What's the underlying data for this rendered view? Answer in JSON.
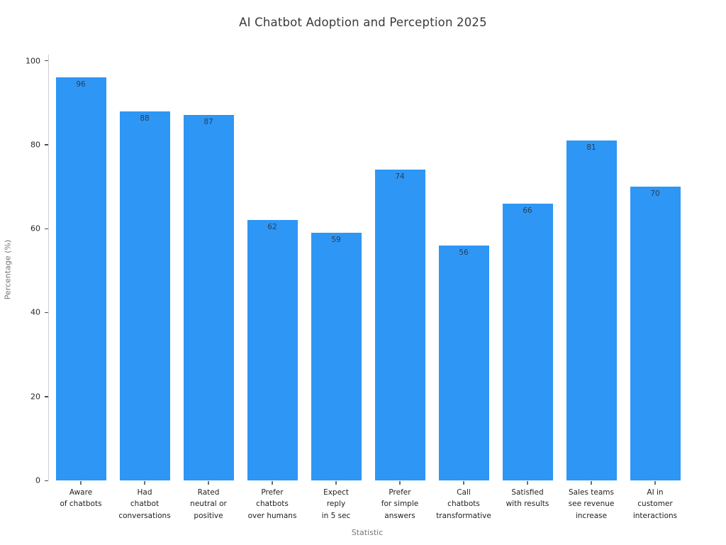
{
  "chart_data": {
    "type": "bar",
    "title": "AI Chatbot Adoption and Perception 2025",
    "xlabel": "Statistic",
    "ylabel": "Percentage (%)",
    "ylim": [
      0,
      100
    ],
    "yticks": [
      0,
      20,
      40,
      60,
      80,
      100
    ],
    "grid": false,
    "legend": null,
    "background_color": "#ffffff",
    "bar_color": "#2E96F5",
    "value_label_color": "#2d3e50",
    "categories": [
      "Aware\nof chatbots",
      "Had\nchatbot\nconversations",
      "Rated\nneutral or\npositive",
      "Prefer\nchatbots\nover humans",
      "Expect\nreply\nin 5 sec",
      "Prefer\nfor simple\nanswers",
      "Call\nchatbots\ntransformative",
      "Satisfied\nwith results",
      "Sales teams\nsee revenue\nincrease",
      "AI in\ncustomer\ninteractions"
    ],
    "values": [
      96,
      88,
      87,
      62,
      59,
      74,
      56,
      66,
      81,
      70
    ]
  }
}
